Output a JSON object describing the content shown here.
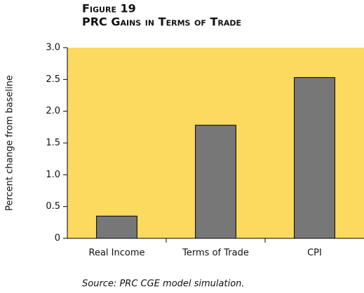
{
  "chart_data": {
    "type": "bar",
    "title": "Figure 19",
    "subtitle": "PRC Gains in Terms of Trade",
    "y_label": "Percent change from baseline",
    "source": "Source: PRC CGE model simulation.",
    "categories": [
      "Real Income",
      "Terms of Trade",
      "CPI"
    ],
    "values": [
      0.35,
      1.78,
      2.53
    ],
    "color": "#777777",
    "background": "#fcd95f",
    "ylim": [
      0,
      3
    ],
    "yticks": [
      0,
      0.5,
      {
        "value": 1,
        "label": "1.0"
      },
      1.5,
      {
        "value": 2,
        "label": "2.0"
      },
      2.5,
      {
        "value": 3,
        "label": "3.0"
      }
    ],
    "grid": false
  }
}
